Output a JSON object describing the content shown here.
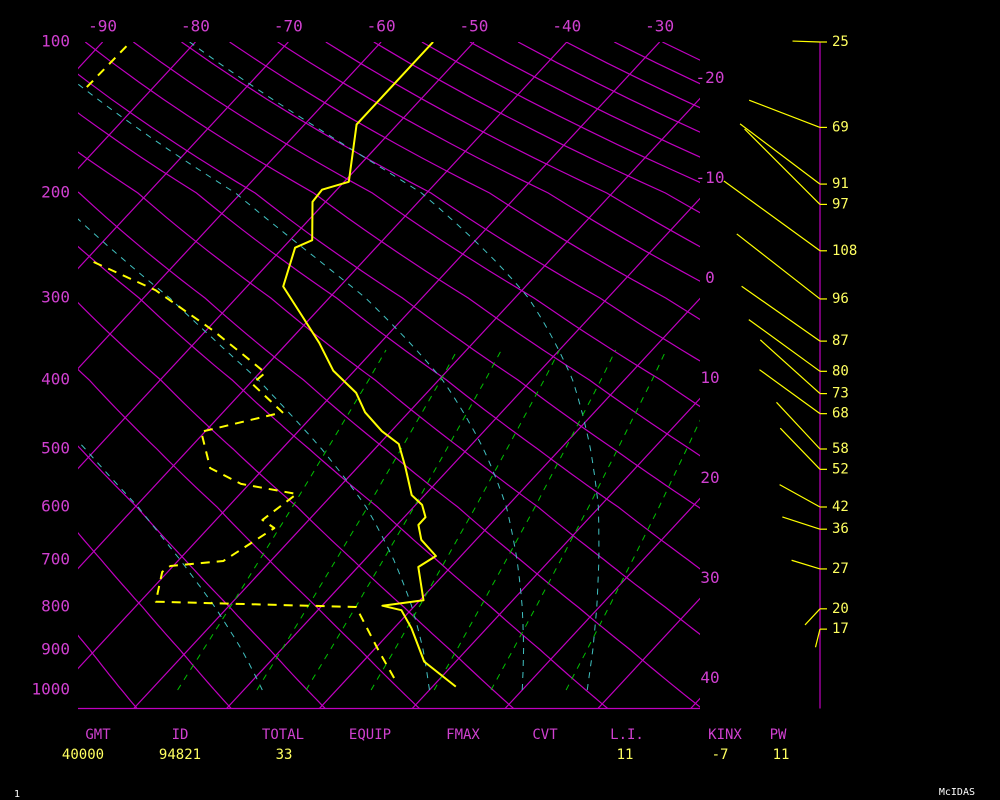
{
  "chart_data": {
    "type": "skew-t",
    "ylim": [
      1050,
      100
    ],
    "yticks": [
      100,
      200,
      300,
      400,
      500,
      600,
      700,
      800,
      900,
      1000
    ],
    "xlim": [
      -26,
      41
    ],
    "xticks": [
      -90,
      -80,
      -70,
      -60,
      -50,
      -40,
      -30,
      -20,
      -10,
      0,
      10,
      20,
      30,
      40
    ],
    "series": [
      {
        "color": "#ffff00",
        "dashed": false,
        "pressure": [
          991,
          928,
          848,
          807,
          797,
          785,
          714,
          692,
          660,
          632,
          618,
          596,
          578,
          529,
          492,
          472,
          444,
          417,
          387,
          351,
          319,
          287,
          247,
          240,
          207,
          197,
          190,
          146,
          100
        ],
        "values": [
          12.5,
          6.6,
          1.9,
          -1.0,
          -3.5,
          0.4,
          -3.5,
          -2.7,
          -5.9,
          -7.7,
          -7.7,
          -9.3,
          -11.4,
          -14.9,
          -17.9,
          -21.0,
          -24.7,
          -27.6,
          -32.3,
          -36.6,
          -41.2,
          -46.1,
          -48.7,
          -47.6,
          -51.4,
          -51.6,
          -49.5,
          -54.4,
          -54.4
        ]
      },
      {
        "color": "#ffff00",
        "dashed": true,
        "pressure": [
          969,
          900,
          800,
          788,
          724,
          712,
          702,
          638,
          623,
          576,
          558,
          531,
          473,
          444,
          405,
          390,
          367,
          336,
          291,
          261,
          null,
          123,
          100
        ],
        "values": [
          5.0,
          0.5,
          -6.2,
          -28.3,
          -30.6,
          -30.3,
          -25.1,
          -22.9,
          -25.0,
          -23.9,
          -30.9,
          -35.8,
          -40.4,
          -33.6,
          -39.7,
          -39.4,
          -43.4,
          -49.3,
          -59.5,
          -69.0,
          null,
          -87.2,
          -87.0
        ]
      }
    ],
    "winds": {
      "color": "#ffff00",
      "pressure": [
        100,
        148,
        192,
        209,
        250,
        301,
        349,
        388,
        418,
        446,
        500,
        533,
        600,
        640,
        718,
        804,
        850
      ],
      "speed": [
        25,
        69,
        91,
        97,
        108,
        96,
        87,
        80,
        73,
        68,
        58,
        52,
        42,
        36,
        27,
        20,
        17
      ],
      "direction": [
        272,
        291,
        307,
        315,
        306,
        308,
        305,
        306,
        312,
        306,
        317,
        316,
        299,
        288,
        287,
        223,
        194
      ]
    },
    "stats": [
      {
        "label": "GMT",
        "value": "40000"
      },
      {
        "label": "ID",
        "value": "94821"
      },
      {
        "label": "TOTAL",
        "value": "33"
      },
      {
        "label": "EQUIP"
      },
      {
        "label": "FMAX"
      },
      {
        "label": "CVT"
      },
      {
        "label": "L.I.",
        "value": "11"
      },
      {
        "label": "KINX",
        "value": "-7"
      },
      {
        "label": "PW",
        "value": "11"
      }
    ]
  },
  "footer": {
    "left": "1",
    "right": "McIDAS"
  }
}
